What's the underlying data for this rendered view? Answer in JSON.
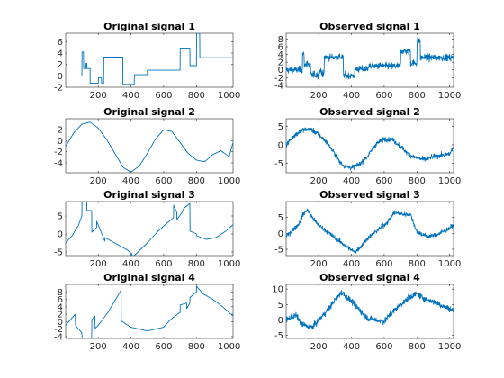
{
  "figure": {
    "line_color": "#0072BD"
  },
  "chart_data": [
    {
      "type": "line",
      "title": "Original signal 1",
      "noise": 0,
      "xlim": [
        1,
        1024
      ],
      "ylim": [
        -2,
        7.5
      ],
      "xticks": [
        200,
        400,
        600,
        800,
        1000
      ],
      "yticks": [
        -2,
        0,
        2,
        4,
        6
      ],
      "segments": [
        {
          "x": [
            1,
            2,
            100,
            101,
            110,
            111,
            125,
            126,
            130,
            131,
            150,
            151,
            200,
            201,
            220,
            221,
            233,
            234,
            350,
            351,
            420,
            421,
            500,
            501,
            700,
            701,
            760,
            761,
            800,
            801,
            820,
            821,
            1024
          ],
          "y": [
            0,
            0,
            0,
            4.2,
            4.2,
            1.3,
            1.3,
            2.2,
            2.2,
            1.3,
            1.3,
            -1.3,
            -1.3,
            -0.3,
            -0.3,
            -1.3,
            -1.3,
            3.3,
            3.3,
            -1.5,
            -1.5,
            0.2,
            0.2,
            1.0,
            1.0,
            4.9,
            4.9,
            1.8,
            1.8,
            7.5,
            7.5,
            3.2,
            3.2
          ]
        }
      ]
    },
    {
      "type": "line",
      "title": "Observed signal 1",
      "noise": 1.1,
      "xlim": [
        1,
        1024
      ],
      "ylim": [
        -4.5,
        9.5
      ],
      "xticks": [
        200,
        400,
        600,
        800,
        1000
      ],
      "yticks": [
        -4,
        -2,
        0,
        2,
        4,
        6,
        8
      ],
      "segments": [
        {
          "x": [
            1,
            2,
            100,
            101,
            110,
            111,
            125,
            126,
            130,
            131,
            150,
            151,
            200,
            201,
            220,
            221,
            233,
            234,
            350,
            351,
            420,
            421,
            500,
            501,
            700,
            701,
            760,
            761,
            800,
            801,
            820,
            821,
            1024
          ],
          "y": [
            0,
            0,
            0,
            4.2,
            4.2,
            1.3,
            1.3,
            2.2,
            2.2,
            1.3,
            1.3,
            -1.3,
            -1.3,
            -0.3,
            -0.3,
            -1.3,
            -1.3,
            3.3,
            3.3,
            -1.5,
            -1.5,
            0.2,
            0.2,
            1.0,
            1.0,
            4.9,
            4.9,
            1.8,
            1.8,
            7.5,
            7.5,
            3.2,
            3.2
          ]
        }
      ]
    },
    {
      "type": "line",
      "title": "Original signal 2",
      "noise": 0,
      "xlim": [
        1,
        1024
      ],
      "ylim": [
        -5.8,
        4
      ],
      "xticks": [
        200,
        400,
        600,
        800,
        1000
      ],
      "yticks": [
        -4,
        -2,
        0,
        2
      ],
      "segments": [
        {
          "x": [
            1,
            50,
            100,
            150,
            200,
            250,
            300,
            330,
            350,
            400,
            450,
            500,
            550,
            600,
            650,
            700,
            750,
            800,
            850,
            900,
            950,
            1000,
            1024
          ],
          "y": [
            -1.0,
            1.4,
            3.0,
            3.4,
            2.3,
            0.3,
            -2.2,
            -3.7,
            -4.8,
            -5.7,
            -4.6,
            -2.3,
            0.3,
            2.0,
            1.7,
            -0.3,
            -2.3,
            -3.5,
            -3.8,
            -2.5,
            -1.8,
            -2.9,
            -0.3
          ]
        }
      ]
    },
    {
      "type": "line",
      "title": "Observed signal 2",
      "noise": 0.8,
      "xlim": [
        1,
        1024
      ],
      "ylim": [
        -7.5,
        7
      ],
      "xticks": [
        200,
        400,
        600,
        800,
        1000
      ],
      "yticks": [
        -5,
        0,
        5
      ],
      "segments": [
        {
          "x": [
            1,
            50,
            100,
            150,
            200,
            250,
            300,
            330,
            350,
            400,
            450,
            500,
            550,
            600,
            650,
            700,
            750,
            800,
            850,
            900,
            950,
            1000,
            1024
          ],
          "y": [
            0.0,
            2.5,
            4.0,
            4.2,
            2.8,
            0.6,
            -2.5,
            -4.7,
            -5.5,
            -6.2,
            -5.2,
            -3.0,
            0.2,
            1.6,
            1.4,
            -0.4,
            -2.6,
            -3.6,
            -4.0,
            -3.2,
            -2.8,
            -2.5,
            -0.5
          ]
        }
      ]
    },
    {
      "type": "line",
      "title": "Original signal 3",
      "noise": 0,
      "xlim": [
        1,
        1024
      ],
      "ylim": [
        -6,
        9
      ],
      "xticks": [
        200,
        400,
        600,
        800,
        1000
      ],
      "yticks": [
        -5,
        0,
        5
      ],
      "segments": [
        {
          "x": [
            1,
            40,
            80,
            100,
            101,
            130,
            131,
            160,
            161,
            190,
            191,
            240,
            241,
            300,
            340,
            380,
            405,
            406,
            420,
            500,
            560,
            620,
            660,
            661,
            680,
            681,
            720,
            721,
            760,
            761,
            800,
            801,
            860,
            920,
            980,
            1024
          ],
          "y": [
            -2.5,
            -0.5,
            2.5,
            5.0,
            9.0,
            9.0,
            6.5,
            6.5,
            0.5,
            1.8,
            3.5,
            -2.0,
            -1.0,
            -2.5,
            -3.5,
            -4.5,
            -5.5,
            -6.0,
            -6.0,
            -2.5,
            0.5,
            3.0,
            4.5,
            8.0,
            6.0,
            4.0,
            6.5,
            7.0,
            8.5,
            0.8,
            0.0,
            -0.5,
            -1.5,
            -1.0,
            0.8,
            2.6
          ]
        }
      ]
    },
    {
      "type": "line",
      "title": "Observed signal 3",
      "noise": 0.9,
      "xlim": [
        1,
        1024
      ],
      "ylim": [
        -7,
        10
      ],
      "xticks": [
        200,
        400,
        600,
        800,
        1000
      ],
      "yticks": [
        -5,
        0,
        5
      ],
      "segments": [
        {
          "x": [
            1,
            40,
            80,
            100,
            130,
            160,
            190,
            240,
            300,
            340,
            380,
            420,
            460,
            500,
            560,
            620,
            660,
            720,
            760,
            800,
            860,
            920,
            980,
            1024
          ],
          "y": [
            -1.0,
            1.0,
            3.0,
            5.5,
            7.5,
            5.0,
            3.0,
            1.0,
            -1.5,
            -3.0,
            -4.5,
            -6.0,
            -4.0,
            -1.5,
            1.0,
            3.5,
            6.5,
            6.0,
            6.0,
            0.5,
            -1.0,
            -0.5,
            1.0,
            2.5
          ]
        }
      ]
    },
    {
      "type": "line",
      "title": "Original signal 4",
      "noise": 0,
      "xlim": [
        1,
        1024
      ],
      "ylim": [
        -4.5,
        10
      ],
      "xticks": [
        200,
        400,
        600,
        800,
        1000
      ],
      "yticks": [
        -4,
        -2,
        0,
        2,
        4,
        6,
        8
      ],
      "segments": [
        {
          "x": [
            1,
            40,
            60,
            61,
            100,
            101,
            160,
            161,
            180,
            181,
            200,
            260,
            300,
            340,
            341,
            400,
            500,
            600,
            640,
            700,
            701,
            740,
            741,
            760,
            761,
            800,
            801,
            840,
            900,
            960,
            1024
          ],
          "y": [
            -1.0,
            1.0,
            2.0,
            -1.0,
            -3.0,
            -4.5,
            -4.5,
            0.5,
            1.5,
            -1.8,
            -1.0,
            2.5,
            5.5,
            8.5,
            0.2,
            -1.5,
            -2.5,
            -1.5,
            0.5,
            2.5,
            4.5,
            5.0,
            3.5,
            5.0,
            6.5,
            8.0,
            9.5,
            7.5,
            6.0,
            4.0,
            1.5
          ]
        }
      ]
    },
    {
      "type": "line",
      "title": "Observed signal 4",
      "noise": 1.2,
      "xlim": [
        1,
        1024
      ],
      "ylim": [
        -6,
        11.5
      ],
      "xticks": [
        200,
        400,
        600,
        800,
        1000
      ],
      "yticks": [
        -5,
        0,
        5,
        10
      ],
      "segments": [
        {
          "x": [
            1,
            60,
            100,
            160,
            200,
            260,
            300,
            340,
            400,
            500,
            600,
            640,
            700,
            760,
            800,
            840,
            900,
            960,
            1024
          ],
          "y": [
            0.0,
            1.5,
            -1.5,
            -2.5,
            0.0,
            3.5,
            6.5,
            9.0,
            6.0,
            0.5,
            -0.5,
            2.0,
            5.0,
            7.5,
            8.5,
            7.0,
            6.0,
            4.5,
            3.0
          ]
        }
      ]
    }
  ]
}
